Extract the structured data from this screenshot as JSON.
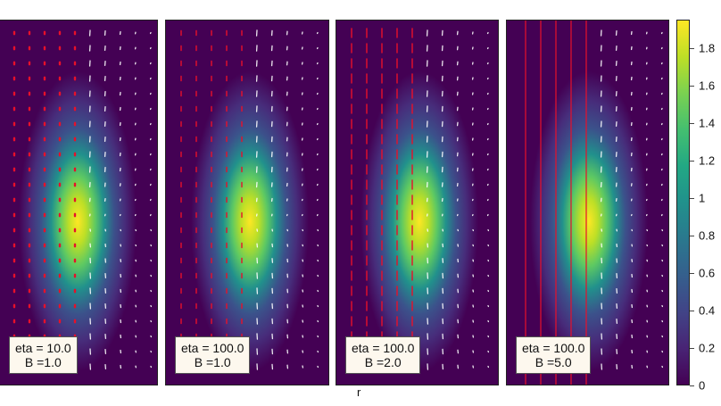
{
  "chart_data": {
    "type": "heatmap",
    "title": "",
    "xlabel": "r",
    "ylabel": "",
    "colormap": "viridis",
    "colorbar": {
      "range": [
        0,
        1.95
      ],
      "ticks": [
        0,
        0.2,
        0.4,
        0.6,
        0.8,
        1,
        1.2,
        1.4,
        1.6,
        1.8
      ],
      "tick_labels": [
        "0",
        "0.2",
        "0.4",
        "0.6",
        "0.8",
        "1",
        "1.2",
        "1.4",
        "1.6",
        "1.8"
      ]
    },
    "panels": [
      {
        "eta": "10.0",
        "B": "1.0",
        "label_line1": "eta = 10.0",
        "label_line2": "B =1.0",
        "field_lines": "dots",
        "peak": 1.9
      },
      {
        "eta": "100.0",
        "B": "1.0",
        "label_line1": "eta = 100.0",
        "label_line2": "B =1.0",
        "field_lines": "short ticks",
        "peak": 1.9
      },
      {
        "eta": "100.0",
        "B": "2.0",
        "label_line1": "eta = 100.0",
        "label_line2": "B =2.0",
        "field_lines": "dashes",
        "peak": 1.85
      },
      {
        "eta": "100.0",
        "B": "5.0",
        "label_line1": "eta = 100.0",
        "label_line2": "B =5.0",
        "field_lines": "continuous lines",
        "peak": 1.9
      }
    ],
    "overlays": {
      "red_vectors": "magnetic field (left of axis)",
      "white_vectors": "velocity field (right of axis)"
    }
  },
  "colors": {
    "red_vector": "#e8102a",
    "white_vector": "#ffffff",
    "background_min": "#440154",
    "peak": "#fde725"
  }
}
